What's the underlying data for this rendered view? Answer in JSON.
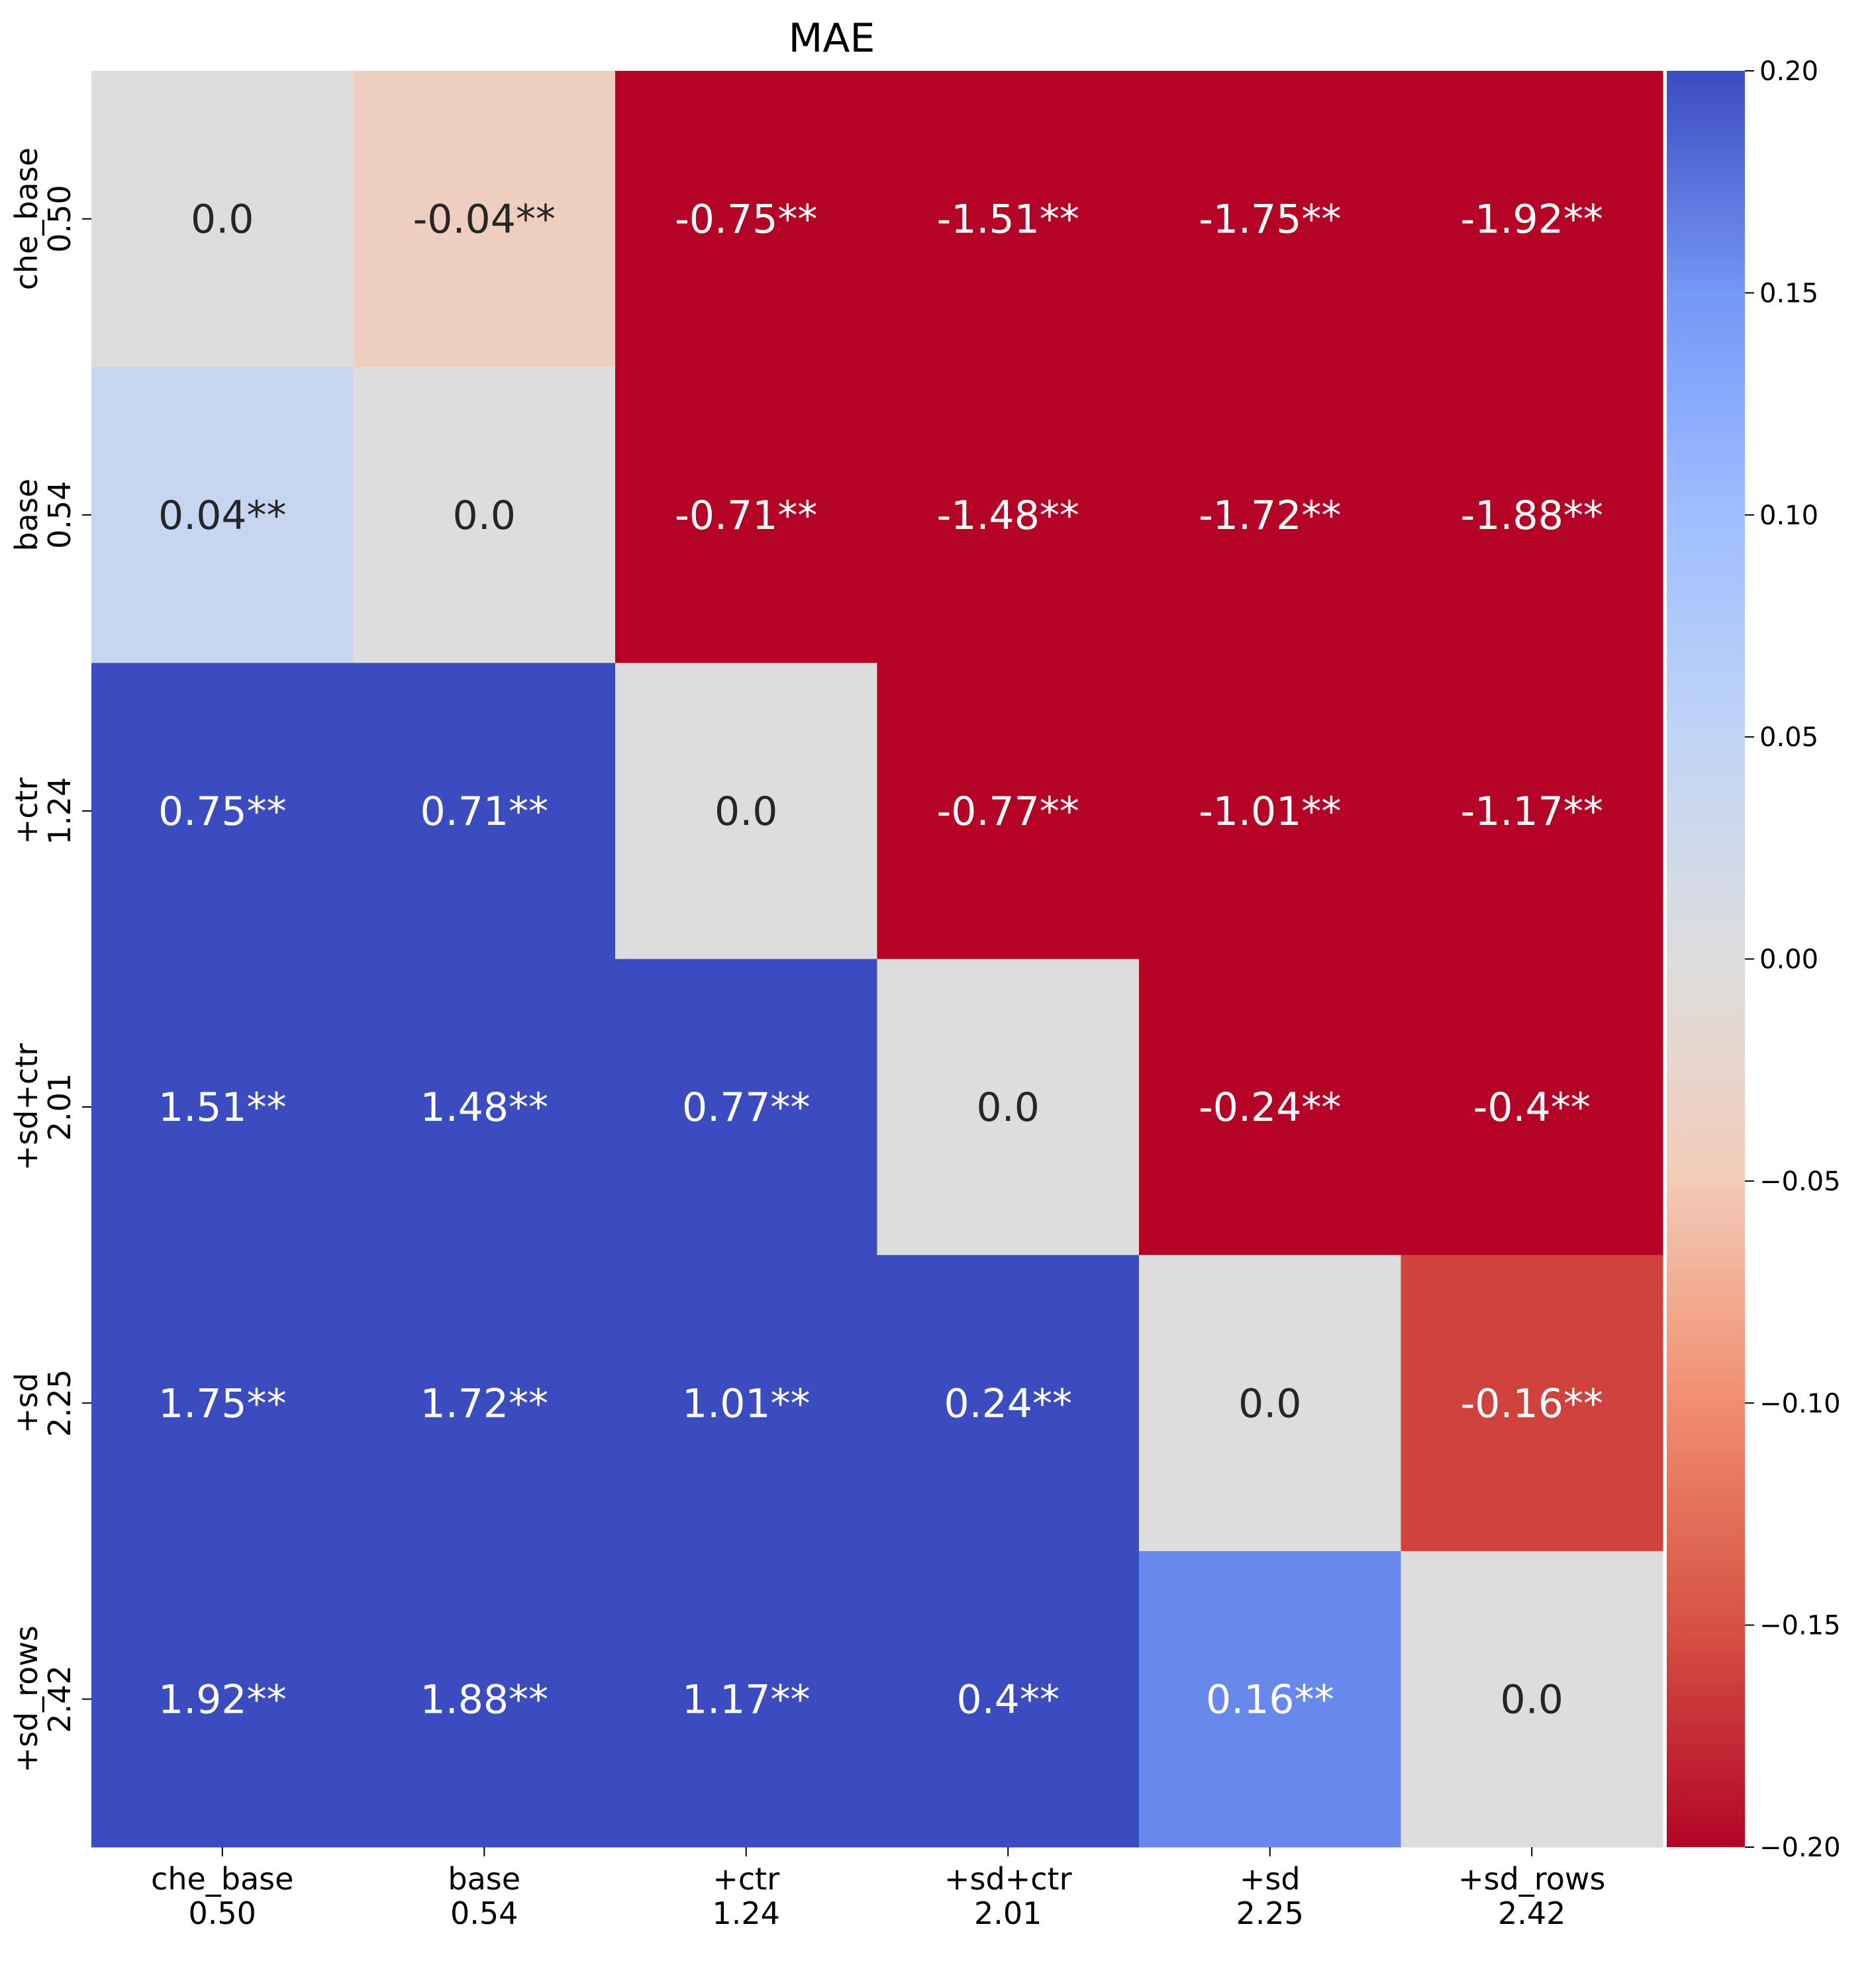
{
  "chart_data": {
    "type": "heatmap",
    "title": "MAE",
    "x_labels": [
      [
        "che_base",
        "0.50"
      ],
      [
        "base",
        "0.54"
      ],
      [
        "+ctr",
        "1.24"
      ],
      [
        "+sd+ctr",
        "2.01"
      ],
      [
        "+sd",
        "2.25"
      ],
      [
        "+sd_rows",
        "2.42"
      ]
    ],
    "y_labels": [
      [
        "che_base",
        "0.50"
      ],
      [
        "base",
        "0.54"
      ],
      [
        "+ctr",
        "1.24"
      ],
      [
        "+sd+ctr",
        "2.01"
      ],
      [
        "+sd",
        "2.25"
      ],
      [
        "+sd_rows",
        "2.42"
      ]
    ],
    "values": [
      [
        0.0,
        -0.04,
        -0.75,
        -1.51,
        -1.75,
        -1.92
      ],
      [
        0.04,
        0.0,
        -0.71,
        -1.48,
        -1.72,
        -1.88
      ],
      [
        0.75,
        0.71,
        0.0,
        -0.77,
        -1.01,
        -1.17
      ],
      [
        1.51,
        1.48,
        0.77,
        0.0,
        -0.24,
        -0.4
      ],
      [
        1.75,
        1.72,
        1.01,
        0.24,
        0.0,
        -0.16
      ],
      [
        1.92,
        1.88,
        1.17,
        0.4,
        0.16,
        0.0
      ]
    ],
    "annotations": [
      [
        "0.0",
        "-0.04**",
        "-0.75**",
        "-1.51**",
        "-1.75**",
        "-1.92**"
      ],
      [
        "0.04**",
        "0.0",
        "-0.71**",
        "-1.48**",
        "-1.72**",
        "-1.88**"
      ],
      [
        "0.75**",
        "0.71**",
        "0.0",
        "-0.77**",
        "-1.01**",
        "-1.17**"
      ],
      [
        "1.51**",
        "1.48**",
        "0.77**",
        "0.0",
        "-0.24**",
        "-0.4**"
      ],
      [
        "1.75**",
        "1.72**",
        "1.01**",
        "0.24**",
        "0.0",
        "-0.16**"
      ],
      [
        "1.92**",
        "1.88**",
        "1.17**",
        "0.4**",
        "0.16**",
        "0.0"
      ]
    ],
    "colorbar": {
      "vmin": -0.2,
      "vmax": 0.2,
      "ticks": [
        0.2,
        0.15,
        0.1,
        0.05,
        0.0,
        -0.05,
        -0.1,
        -0.15,
        -0.2
      ],
      "tick_labels": [
        "0.20",
        "0.15",
        "0.10",
        "0.05",
        "0.00",
        "−0.05",
        "−0.10",
        "−0.15",
        "−0.20"
      ],
      "colormap": "coolwarm_r",
      "low_color": "#b40426",
      "mid_color": "#dddddd",
      "high_color": "#3b4cc0"
    },
    "grid": false,
    "legend": "colorbar-right"
  }
}
